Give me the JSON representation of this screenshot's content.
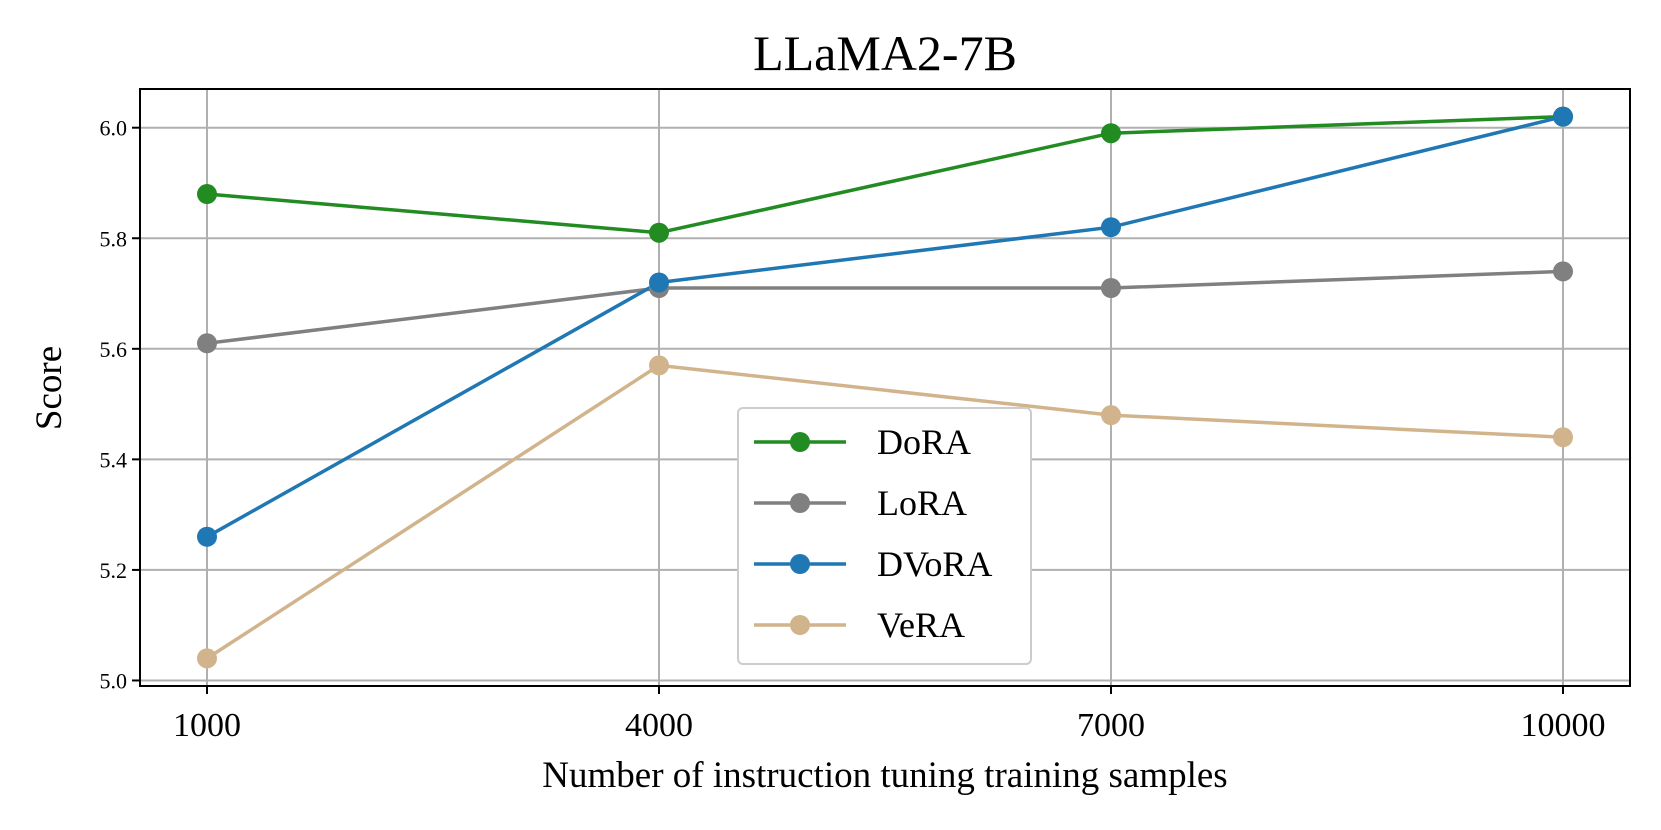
{
  "chart_data": {
    "type": "line",
    "title": "LLaMA2-7B",
    "xlabel": "Number of instruction tuning training samples",
    "ylabel": "Score",
    "x": [
      1000,
      4000,
      7000,
      10000
    ],
    "xticks": [
      "1000",
      "4000",
      "7000",
      "10000"
    ],
    "yticks": [
      "5.0",
      "5.2",
      "5.4",
      "5.6",
      "5.8",
      "6.0"
    ],
    "ylim": [
      4.99,
      6.07
    ],
    "grid": true,
    "legend_position": "bottom-center",
    "series": [
      {
        "name": "DoRA",
        "color": "#228B22",
        "values": [
          5.88,
          5.81,
          5.99,
          6.02
        ]
      },
      {
        "name": "LoRA",
        "color": "#808080",
        "values": [
          5.61,
          5.71,
          5.71,
          5.74
        ]
      },
      {
        "name": "DVoRA",
        "color": "#1f77b4",
        "values": [
          5.26,
          5.72,
          5.82,
          6.02
        ]
      },
      {
        "name": "VeRA",
        "color": "#D2B48C",
        "values": [
          5.04,
          5.57,
          5.48,
          5.44
        ]
      }
    ]
  }
}
